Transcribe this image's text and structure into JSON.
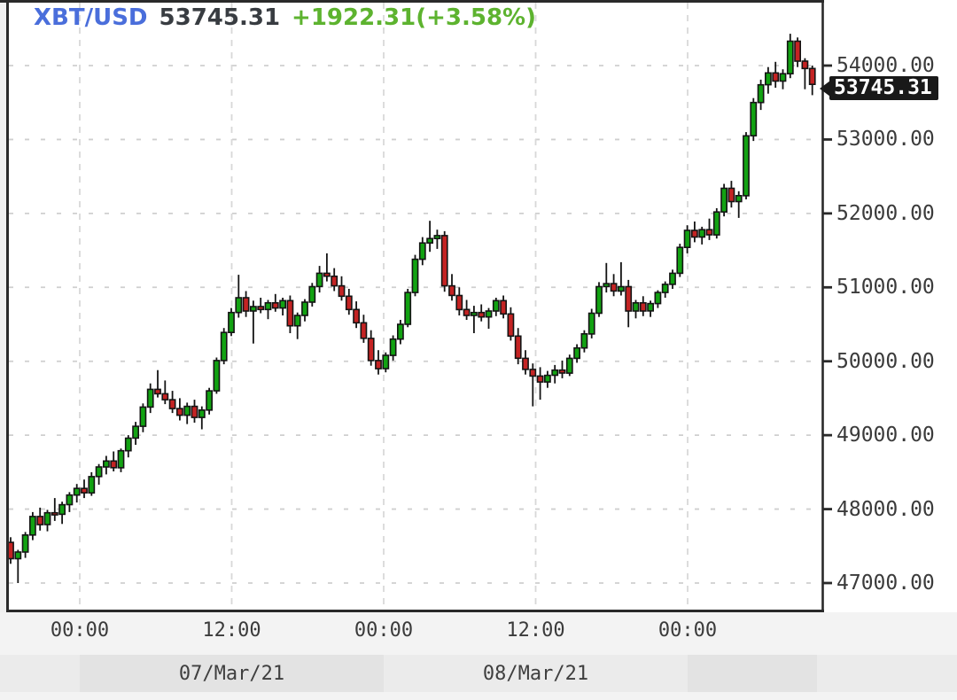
{
  "header": {
    "symbol": "XBT/USD",
    "last_price": "53745.31",
    "change": "+1922.31(+3.58%)"
  },
  "price_tag": {
    "value": "53745.31"
  },
  "colors": {
    "symbol_blue": "#4a6edb",
    "price_dark": "#383c41",
    "change_green": "#5db32f",
    "candle_up": "#12a212",
    "candle_down": "#c42323",
    "candle_outline": "#141414",
    "grid_vertical": "#d8d8d8",
    "grid_horizontal": "#cfcfcf",
    "axis_line": "#2a2a2a",
    "axis_text": "#3b3b3b",
    "tag_background": "#191919",
    "tag_text": "#ffffff"
  },
  "chart_data": {
    "type": "candlestick",
    "title": "XBT/USD intraday candlestick chart",
    "symbol": "XBT/USD",
    "last": 53745.31,
    "change_abs": 1922.31,
    "change_pct": 3.58,
    "grid": "dashed",
    "y_axis": {
      "side": "right",
      "range": [
        46600,
        54890
      ],
      "tick_values": [
        54000,
        53000,
        52000,
        51000,
        50000,
        49000,
        48000,
        47000
      ],
      "tick_labels": [
        "54000.00",
        "53000.00",
        "52000.00",
        "51000.00",
        "50000.00",
        "49000.00",
        "48000.00",
        "47000.00"
      ]
    },
    "x_axis": {
      "side": "bottom",
      "tick_labels": [
        "00:00",
        "12:00",
        "00:00",
        "12:00",
        "00:00"
      ]
    },
    "date_bands": [
      "",
      "07/Mar/21",
      "08/Mar/21",
      "",
      ""
    ],
    "candles_format": [
      "open",
      "high",
      "low",
      "close"
    ],
    "candles": [
      [
        47550,
        47620,
        47260,
        47330
      ],
      [
        47330,
        47450,
        47000,
        47420
      ],
      [
        47420,
        47690,
        47340,
        47650
      ],
      [
        47650,
        47960,
        47580,
        47900
      ],
      [
        47900,
        48020,
        47710,
        47790
      ],
      [
        47790,
        47990,
        47700,
        47950
      ],
      [
        47950,
        48150,
        47840,
        47930
      ],
      [
        47930,
        48100,
        47800,
        48060
      ],
      [
        48060,
        48230,
        47960,
        48190
      ],
      [
        48190,
        48340,
        48090,
        48280
      ],
      [
        48280,
        48400,
        48150,
        48220
      ],
      [
        48220,
        48500,
        48180,
        48440
      ],
      [
        48440,
        48610,
        48330,
        48570
      ],
      [
        48570,
        48720,
        48470,
        48650
      ],
      [
        48650,
        48780,
        48510,
        48560
      ],
      [
        48560,
        48820,
        48500,
        48790
      ],
      [
        48790,
        49000,
        48700,
        48960
      ],
      [
        48960,
        49180,
        48870,
        49120
      ],
      [
        49120,
        49430,
        49040,
        49380
      ],
      [
        49380,
        49700,
        49300,
        49620
      ],
      [
        49620,
        49880,
        49510,
        49560
      ],
      [
        49560,
        49740,
        49420,
        49480
      ],
      [
        49480,
        49600,
        49300,
        49360
      ],
      [
        49360,
        49500,
        49200,
        49270
      ],
      [
        49270,
        49440,
        49150,
        49390
      ],
      [
        49390,
        49480,
        49170,
        49240
      ],
      [
        49240,
        49390,
        49080,
        49340
      ],
      [
        49340,
        49640,
        49280,
        49600
      ],
      [
        49600,
        50050,
        49560,
        50010
      ],
      [
        50010,
        50450,
        49960,
        50390
      ],
      [
        50390,
        50720,
        50340,
        50660
      ],
      [
        50660,
        51170,
        50590,
        50860
      ],
      [
        50860,
        50950,
        50600,
        50680
      ],
      [
        50680,
        50820,
        50240,
        50740
      ],
      [
        50740,
        50860,
        50650,
        50700
      ],
      [
        50700,
        50830,
        50570,
        50790
      ],
      [
        50790,
        50910,
        50670,
        50720
      ],
      [
        50720,
        50860,
        50620,
        50820
      ],
      [
        50820,
        50890,
        50380,
        50480
      ],
      [
        50480,
        50660,
        50300,
        50620
      ],
      [
        50620,
        50840,
        50540,
        50800
      ],
      [
        50800,
        51060,
        50740,
        51010
      ],
      [
        51010,
        51290,
        50930,
        51190
      ],
      [
        51190,
        51460,
        51080,
        51150
      ],
      [
        51150,
        51260,
        50950,
        51020
      ],
      [
        51020,
        51150,
        50820,
        50880
      ],
      [
        50880,
        50980,
        50630,
        50700
      ],
      [
        50700,
        50810,
        50450,
        50520
      ],
      [
        50520,
        50630,
        50250,
        50310
      ],
      [
        50310,
        50420,
        49940,
        50010
      ],
      [
        50010,
        50150,
        49820,
        49900
      ],
      [
        49900,
        50120,
        49850,
        50080
      ],
      [
        50080,
        50350,
        50010,
        50300
      ],
      [
        50300,
        50560,
        50230,
        50500
      ],
      [
        50500,
        50980,
        50460,
        50930
      ],
      [
        50930,
        51440,
        50880,
        51380
      ],
      [
        51380,
        51680,
        51300,
        51600
      ],
      [
        51600,
        51900,
        51480,
        51660
      ],
      [
        51660,
        51780,
        51520,
        51700
      ],
      [
        51700,
        51760,
        50940,
        51020
      ],
      [
        51020,
        51180,
        50820,
        50890
      ],
      [
        50890,
        51000,
        50620,
        50700
      ],
      [
        50700,
        50830,
        50560,
        50620
      ],
      [
        50620,
        50750,
        50380,
        50660
      ],
      [
        50660,
        50770,
        50540,
        50600
      ],
      [
        50600,
        50720,
        50440,
        50680
      ],
      [
        50680,
        50860,
        50610,
        50820
      ],
      [
        50820,
        50890,
        50580,
        50640
      ],
      [
        50640,
        50730,
        50280,
        50340
      ],
      [
        50340,
        50450,
        49960,
        50040
      ],
      [
        50040,
        50150,
        49820,
        49890
      ],
      [
        49890,
        49970,
        49390,
        49800
      ],
      [
        49800,
        49920,
        49480,
        49720
      ],
      [
        49720,
        49870,
        49640,
        49810
      ],
      [
        49810,
        49950,
        49700,
        49880
      ],
      [
        49880,
        50010,
        49770,
        49840
      ],
      [
        49840,
        50090,
        49800,
        50040
      ],
      [
        50040,
        50230,
        49980,
        50180
      ],
      [
        50180,
        50420,
        50120,
        50370
      ],
      [
        50370,
        50710,
        50310,
        50650
      ],
      [
        50650,
        51070,
        50600,
        51010
      ],
      [
        51010,
        51330,
        50930,
        51050
      ],
      [
        51050,
        51180,
        50880,
        50950
      ],
      [
        50950,
        51340,
        50890,
        51010
      ],
      [
        51010,
        51100,
        50460,
        50680
      ],
      [
        50680,
        50830,
        50580,
        50790
      ],
      [
        50790,
        50880,
        50610,
        50680
      ],
      [
        50680,
        50820,
        50600,
        50780
      ],
      [
        50780,
        50960,
        50720,
        50930
      ],
      [
        50930,
        51080,
        50860,
        51040
      ],
      [
        51040,
        51240,
        50980,
        51190
      ],
      [
        51190,
        51590,
        51140,
        51540
      ],
      [
        51540,
        51840,
        51460,
        51770
      ],
      [
        51770,
        51890,
        51610,
        51680
      ],
      [
        51680,
        51820,
        51580,
        51780
      ],
      [
        51780,
        51930,
        51640,
        51710
      ],
      [
        51710,
        52070,
        51660,
        52020
      ],
      [
        52020,
        52400,
        51960,
        52340
      ],
      [
        52340,
        52440,
        52080,
        52160
      ],
      [
        52160,
        52300,
        51940,
        52240
      ],
      [
        52240,
        53100,
        52190,
        53050
      ],
      [
        53050,
        53560,
        52980,
        53500
      ],
      [
        53500,
        53810,
        53400,
        53740
      ],
      [
        53740,
        53980,
        53620,
        53900
      ],
      [
        53900,
        54050,
        53700,
        53790
      ],
      [
        53790,
        53950,
        53680,
        53890
      ],
      [
        53890,
        54430,
        53830,
        54330
      ],
      [
        54330,
        54380,
        53980,
        54060
      ],
      [
        54060,
        54100,
        53680,
        53960
      ],
      [
        53960,
        54000,
        53600,
        53745.31
      ]
    ]
  }
}
